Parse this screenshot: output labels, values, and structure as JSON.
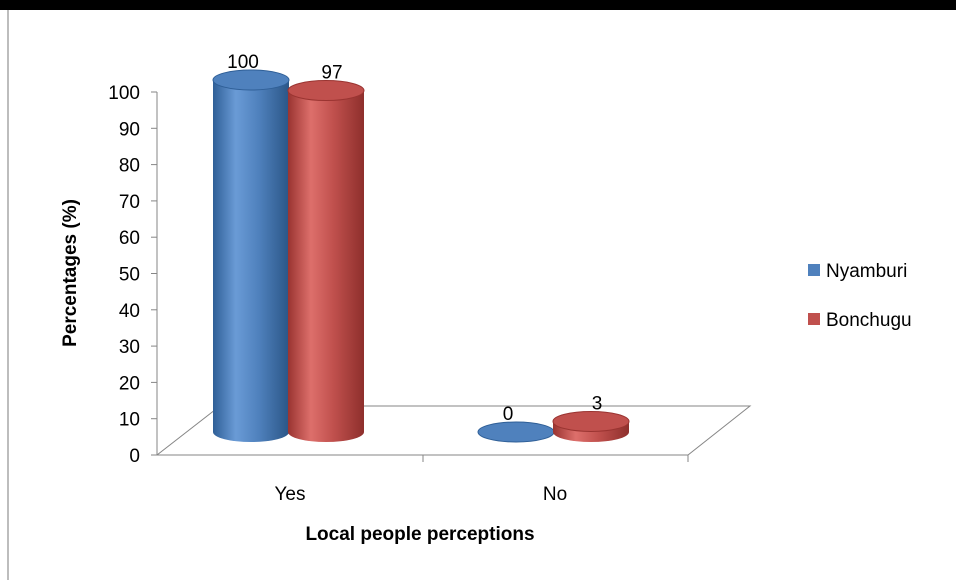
{
  "chart_data": {
    "type": "bar",
    "categories": [
      "Yes",
      "No"
    ],
    "series": [
      {
        "name": "Nyamburi",
        "values": [
          100,
          0
        ],
        "color": "#4f81bd"
      },
      {
        "name": "Bonchugu",
        "values": [
          97,
          3
        ],
        "color": "#c0504d"
      }
    ],
    "title": "",
    "xlabel": "Local people perceptions",
    "ylabel": "Percentages (%)",
    "ylim": [
      0,
      100
    ],
    "yticks": [
      "0",
      "10",
      "20",
      "30",
      "40",
      "50",
      "60",
      "70",
      "80",
      "90",
      "100"
    ],
    "legend_position": "right",
    "grid": false,
    "style": "3d-cylinder"
  }
}
